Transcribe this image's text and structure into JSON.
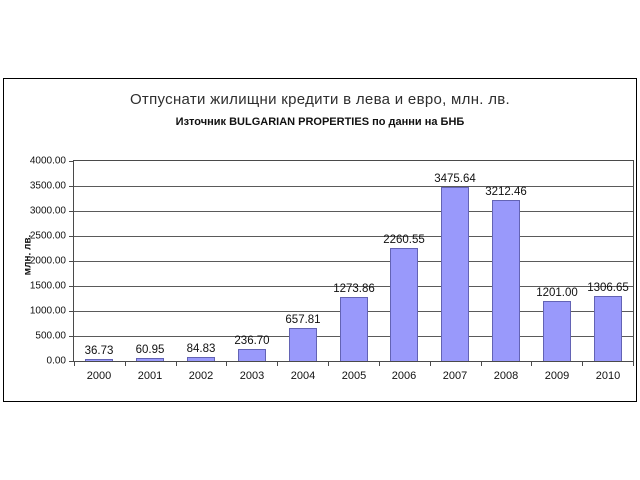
{
  "chart_data": {
    "type": "bar",
    "title": "Отпуснати жилищни кредити в лева и евро, млн. лв.",
    "subtitle": "Източник BULGARIAN PROPERTIES по данни на БНБ",
    "ylabel": "млн. лв.",
    "xlabel": "",
    "categories": [
      "2000",
      "2001",
      "2002",
      "2003",
      "2004",
      "2005",
      "2006",
      "2007",
      "2008",
      "2009",
      "2010"
    ],
    "values": [
      36.73,
      60.95,
      84.83,
      236.7,
      657.81,
      1273.86,
      2260.55,
      3475.64,
      3212.46,
      1201.0,
      1306.65
    ],
    "value_labels": [
      "36.73",
      "60.95",
      "84.83",
      "236.70",
      "657.81",
      "1273.86",
      "2260.55",
      "3475.64",
      "3212.46",
      "1201.00",
      "1306.65"
    ],
    "ylim": [
      0,
      4000
    ],
    "ytick_step": 500,
    "ytick_labels": [
      "0.00",
      "500.00",
      "1000.00",
      "1500.00",
      "2000.00",
      "2500.00",
      "3000.00",
      "3500.00",
      "4000.00"
    ],
    "grid": true,
    "legend": "none",
    "colors": {
      "bar_fill": "#9999fb",
      "bar_border": "#6363b4",
      "gridline": "#5a5a5a",
      "frame_border": "#000000",
      "text": "#111111"
    }
  }
}
